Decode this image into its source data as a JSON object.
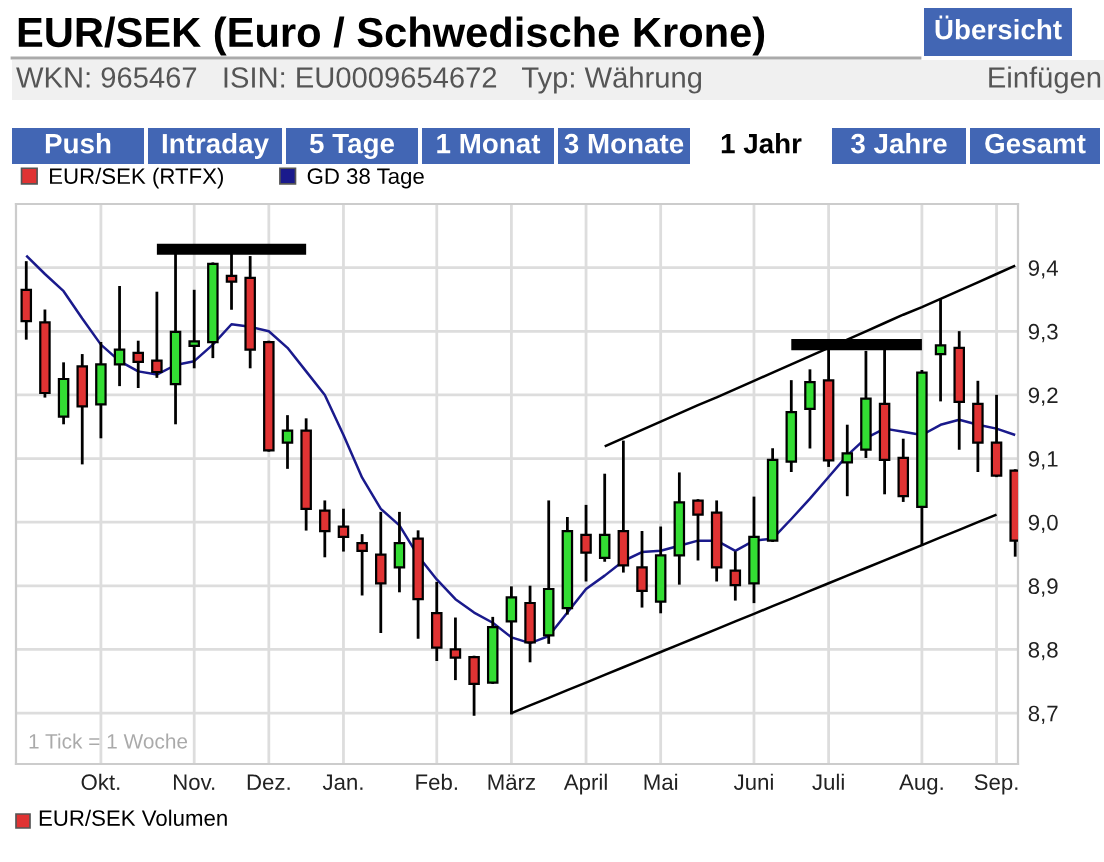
{
  "chart_data": {
    "type": "candlestick",
    "title": "EUR/SEK (Euro / Schwedische Krone)",
    "subtitle": "WKN: 965467   ISIN: EU0009654672   Typ: Währung",
    "categories": [
      null,
      null,
      null,
      null,
      "Okt.",
      null,
      null,
      null,
      null,
      "Nov.",
      null,
      null,
      null,
      "Dez.",
      null,
      null,
      null,
      "Jan.",
      null,
      null,
      null,
      null,
      "Feb.",
      null,
      null,
      null,
      "März",
      null,
      null,
      null,
      "April",
      null,
      null,
      null,
      "Mai",
      null,
      null,
      null,
      null,
      "Juni",
      null,
      null,
      null,
      "Juli",
      null,
      null,
      null,
      null,
      "Aug.",
      null,
      null,
      null,
      "Sep.",
      null
    ],
    "series": [
      {
        "type": "candlestick",
        "name": "EUR/SEK (RTFX)",
        "color": "#e03333",
        "colors": [
          "#e03333",
          "#e03333",
          "#33dd33",
          "#e03333",
          "#33dd33",
          "#33dd33",
          "#e03333",
          "#e03333",
          "#33dd33",
          "#33dd33",
          "#33dd33",
          "#e03333",
          "#e03333",
          "#e03333",
          "#33dd33",
          "#e03333",
          "#e03333",
          "#e03333",
          "#e03333",
          "#e03333",
          "#33dd33",
          "#e03333",
          "#e03333",
          "#e03333",
          "#e03333",
          "#33dd33",
          "#33dd33",
          "#e03333",
          "#33dd33",
          "#33dd33",
          "#e03333",
          "#33dd33",
          "#e03333",
          "#e03333",
          "#33dd33",
          "#33dd33",
          "#e03333",
          "#e03333",
          "#e03333",
          "#33dd33",
          "#33dd33",
          "#33dd33",
          "#33dd33",
          "#e03333",
          "#33dd33",
          "#33dd33",
          "#e03333",
          "#e03333",
          "#33dd33",
          "#33dd33",
          "#e03333",
          "#e03333",
          "#e03333",
          "#e03333"
        ],
        "ohlc": [
          [
            9.365,
            9.408,
            9.289,
            9.316
          ],
          [
            9.314,
            9.332,
            9.198,
            9.203
          ],
          [
            9.166,
            9.249,
            9.156,
            9.225
          ],
          [
            9.245,
            9.262,
            9.093,
            9.182
          ],
          [
            9.185,
            9.281,
            9.134,
            9.248
          ],
          [
            9.248,
            9.369,
            9.216,
            9.271
          ],
          [
            9.266,
            9.283,
            9.213,
            9.252
          ],
          [
            9.254,
            9.36,
            9.229,
            9.236
          ],
          [
            9.217,
            9.426,
            9.156,
            9.299
          ],
          [
            9.277,
            9.363,
            9.244,
            9.284
          ],
          [
            9.283,
            9.406,
            9.26,
            9.406
          ],
          [
            9.387,
            9.423,
            9.336,
            9.378
          ],
          [
            9.384,
            9.416,
            9.244,
            9.271
          ],
          [
            9.283,
            9.283,
            9.113,
            9.113
          ],
          [
            9.125,
            9.166,
            9.086,
            9.144
          ],
          [
            9.144,
            9.161,
            8.989,
            9.021
          ],
          [
            9.018,
            9.032,
            8.947,
            8.986
          ],
          [
            8.993,
            9.019,
            8.956,
            8.977
          ],
          [
            8.967,
            8.979,
            8.887,
            8.955
          ],
          [
            8.949,
            9.014,
            8.828,
            8.904
          ],
          [
            8.929,
            9.014,
            8.892,
            8.967
          ],
          [
            8.974,
            8.985,
            8.819,
            8.879
          ],
          [
            8.857,
            8.904,
            8.784,
            8.803
          ],
          [
            8.8,
            8.848,
            8.754,
            8.787
          ],
          [
            8.788,
            8.788,
            8.698,
            8.746
          ],
          [
            8.748,
            8.849,
            8.748,
            8.835
          ],
          [
            8.844,
            8.897,
            8.7,
            8.882
          ],
          [
            8.873,
            8.898,
            8.782,
            8.811
          ],
          [
            8.822,
            9.032,
            8.811,
            8.895
          ],
          [
            8.865,
            9.006,
            8.857,
            8.986
          ],
          [
            8.98,
            9.025,
            8.909,
            8.952
          ],
          [
            8.944,
            9.074,
            8.94,
            8.98
          ],
          [
            8.986,
            9.126,
            8.923,
            8.932
          ],
          [
            8.929,
            8.984,
            8.868,
            8.892
          ],
          [
            8.875,
            8.991,
            8.859,
            8.948
          ],
          [
            8.948,
            9.076,
            8.904,
            9.031
          ],
          [
            9.034,
            9.034,
            8.942,
            9.012
          ],
          [
            9.015,
            9.032,
            8.909,
            8.929
          ],
          [
            8.924,
            8.952,
            8.879,
            8.901
          ],
          [
            8.904,
            9.038,
            8.875,
            8.977
          ],
          [
            8.971,
            9.114,
            8.971,
            9.098
          ],
          [
            9.095,
            9.221,
            9.081,
            9.173
          ],
          [
            9.178,
            9.238,
            9.118,
            9.22
          ],
          [
            9.223,
            9.274,
            9.089,
            9.097
          ],
          [
            9.094,
            9.151,
            9.043,
            9.108
          ],
          [
            9.114,
            9.267,
            9.103,
            9.194
          ],
          [
            9.186,
            9.274,
            9.046,
            9.098
          ],
          [
            9.101,
            9.129,
            9.034,
            9.041
          ],
          [
            9.024,
            9.237,
            8.965,
            9.235
          ],
          [
            9.264,
            9.349,
            9.192,
            9.278
          ],
          [
            9.274,
            9.298,
            9.116,
            9.189
          ],
          [
            9.186,
            9.22,
            9.081,
            9.125
          ],
          [
            9.125,
            9.198,
            9.073,
            9.073
          ],
          [
            9.081,
            9.081,
            8.948,
            8.971
          ]
        ]
      },
      {
        "type": "line",
        "name": "GD 38 Tage",
        "color": "#1a1a8c",
        "values": [
          9.419,
          9.39,
          9.363,
          9.32,
          9.279,
          9.253,
          9.237,
          9.232,
          9.247,
          9.253,
          9.279,
          9.311,
          9.307,
          9.3,
          9.274,
          9.237,
          9.2,
          9.137,
          9.07,
          9.021,
          8.995,
          8.947,
          8.91,
          8.879,
          8.858,
          8.842,
          8.819,
          8.81,
          8.821,
          8.858,
          8.895,
          8.916,
          8.939,
          8.953,
          8.955,
          8.963,
          8.971,
          8.971,
          8.955,
          8.971,
          8.974,
          9.005,
          9.037,
          9.071,
          9.105,
          9.132,
          9.147,
          9.142,
          9.137,
          9.153,
          9.161,
          9.153,
          9.147,
          9.137
        ]
      },
      {
        "type": "line",
        "color": "#000000",
        "values": [
          null,
          null,
          null,
          null,
          null,
          null,
          null,
          9.429,
          9.429,
          9.429,
          9.429,
          9.429,
          9.429,
          9.429,
          9.429,
          9.429,
          null,
          null,
          null,
          null,
          null,
          null,
          null,
          null,
          null,
          null,
          null,
          null,
          null,
          null,
          null,
          null,
          null,
          null,
          null,
          null,
          null,
          null,
          null,
          null,
          null,
          null,
          null,
          null,
          null,
          null,
          null,
          null,
          null,
          null,
          null,
          null,
          null,
          null
        ]
      },
      {
        "type": "line",
        "color": "#000000",
        "values": [
          null,
          null,
          null,
          null,
          null,
          null,
          null,
          null,
          null,
          null,
          null,
          null,
          null,
          null,
          null,
          null,
          null,
          null,
          null,
          null,
          null,
          null,
          null,
          null,
          null,
          null,
          null,
          null,
          null,
          null,
          null,
          null,
          null,
          null,
          null,
          null,
          null,
          null,
          null,
          null,
          null,
          9.279,
          9.279,
          9.279,
          9.279,
          9.279,
          9.279,
          9.279,
          9.279,
          null,
          null,
          null,
          null,
          null
        ]
      },
      {
        "type": "line",
        "color": "#000000",
        "values": [
          null,
          null,
          null,
          null,
          null,
          null,
          null,
          null,
          null,
          null,
          null,
          null,
          null,
          null,
          null,
          null,
          null,
          null,
          null,
          null,
          null,
          null,
          null,
          null,
          null,
          null,
          8.7,
          8.712,
          8.724,
          8.736,
          8.748,
          8.76,
          8.772,
          8.784,
          8.796,
          8.808,
          8.82,
          8.832,
          8.844,
          8.856,
          8.868,
          8.88,
          8.892,
          8.904,
          8.916,
          8.928,
          8.94,
          8.952,
          8.964,
          8.976,
          8.988,
          9.0,
          9.012,
          null
        ]
      },
      {
        "type": "line",
        "color": "#000000",
        "values": [
          null,
          null,
          null,
          null,
          null,
          null,
          null,
          null,
          null,
          null,
          null,
          null,
          null,
          null,
          null,
          null,
          null,
          null,
          null,
          null,
          null,
          null,
          null,
          null,
          null,
          null,
          null,
          null,
          null,
          null,
          null,
          9.119,
          9.132,
          9.145,
          9.158,
          9.171,
          9.184,
          9.196,
          9.209,
          9.222,
          9.235,
          9.248,
          9.261,
          9.274,
          9.287,
          9.3,
          9.313,
          9.326,
          9.338,
          9.351,
          9.364,
          9.377,
          9.39,
          9.403
        ]
      }
    ],
    "ylim": [
      8.62,
      9.5
    ],
    "yticks": [
      {
        "value": 8.7,
        "label": "8,7"
      },
      {
        "value": 8.8,
        "label": "8,8"
      },
      {
        "value": 8.9,
        "label": "8,9"
      },
      {
        "value": 9.0,
        "label": "9,0"
      },
      {
        "value": 9.1,
        "label": "9,1"
      },
      {
        "value": 9.2,
        "label": "9,2"
      },
      {
        "value": 9.3,
        "label": "9,3"
      },
      {
        "value": 9.4,
        "label": "9,4"
      }
    ],
    "grid": true,
    "legend": "top left",
    "annotations": [
      "1 Tick = 1 Woche",
      "EUR/SEK Volumen",
      "Push",
      "Intraday",
      "5 Tage",
      "1 Monat",
      "3 Monate",
      "1 Jahr",
      "3 Jahre",
      "Gesamt",
      "Übersicht",
      "Einfügen"
    ]
  }
}
